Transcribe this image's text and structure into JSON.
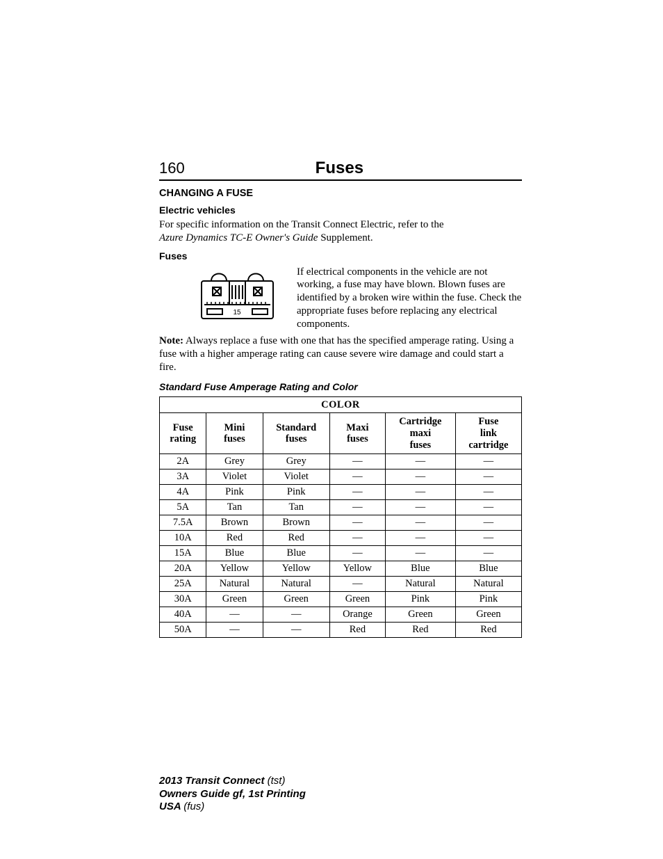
{
  "page": {
    "number": "160",
    "chapter": "Fuses"
  },
  "headings": {
    "changing": "CHANGING A FUSE",
    "ev": "Electric vehicles",
    "fuses": "Fuses",
    "table_title": "Standard Fuse Amperage Rating and Color"
  },
  "paragraphs": {
    "ev_line1": "For specific information on the Transit Connect Electric, refer to the",
    "ev_italic": "Azure Dynamics TC-E Owner's Guide",
    "ev_line2_tail": " Supplement.",
    "fuse_desc": "If electrical components in the vehicle are not working, a fuse may have blown. Blown fuses are identified by a broken wire within the fuse. Check the appropriate fuses before replacing any electrical components.",
    "note_label": "Note:",
    "note_body": " Always replace a fuse with one that has the specified amperage rating. Using a fuse with a higher amperage rating can cause severe wire damage and could start a fire."
  },
  "fuse_figure": {
    "label": "15",
    "stroke": "#000000",
    "fill": "#ffffff"
  },
  "table": {
    "super_header": "COLOR",
    "columns": [
      "Fuse rating",
      "Mini fuses",
      "Standard fuses",
      "Maxi fuses",
      "Cartridge maxi fuses",
      "Fuse link cartridge"
    ],
    "rows": [
      [
        "2A",
        "Grey",
        "Grey",
        "—",
        "—",
        "—"
      ],
      [
        "3A",
        "Violet",
        "Violet",
        "—",
        "—",
        "—"
      ],
      [
        "4A",
        "Pink",
        "Pink",
        "—",
        "—",
        "—"
      ],
      [
        "5A",
        "Tan",
        "Tan",
        "—",
        "—",
        "—"
      ],
      [
        "7.5A",
        "Brown",
        "Brown",
        "—",
        "—",
        "—"
      ],
      [
        "10A",
        "Red",
        "Red",
        "—",
        "—",
        "—"
      ],
      [
        "15A",
        "Blue",
        "Blue",
        "—",
        "—",
        "—"
      ],
      [
        "20A",
        "Yellow",
        "Yellow",
        "Yellow",
        "Blue",
        "Blue"
      ],
      [
        "25A",
        "Natural",
        "Natural",
        "—",
        "Natural",
        "Natural"
      ],
      [
        "30A",
        "Green",
        "Green",
        "Green",
        "Pink",
        "Pink"
      ],
      [
        "40A",
        "—",
        "—",
        "Orange",
        "Green",
        "Green"
      ],
      [
        "50A",
        "—",
        "—",
        "Red",
        "Red",
        "Red"
      ]
    ],
    "border_color": "#000000",
    "font_size_pt": 11
  },
  "footer": {
    "line1_bold": "2013 Transit Connect ",
    "line1_light": "(tst)",
    "line2": "Owners Guide gf, 1st Printing",
    "line3_bold": "USA ",
    "line3_light": "(fus)"
  }
}
